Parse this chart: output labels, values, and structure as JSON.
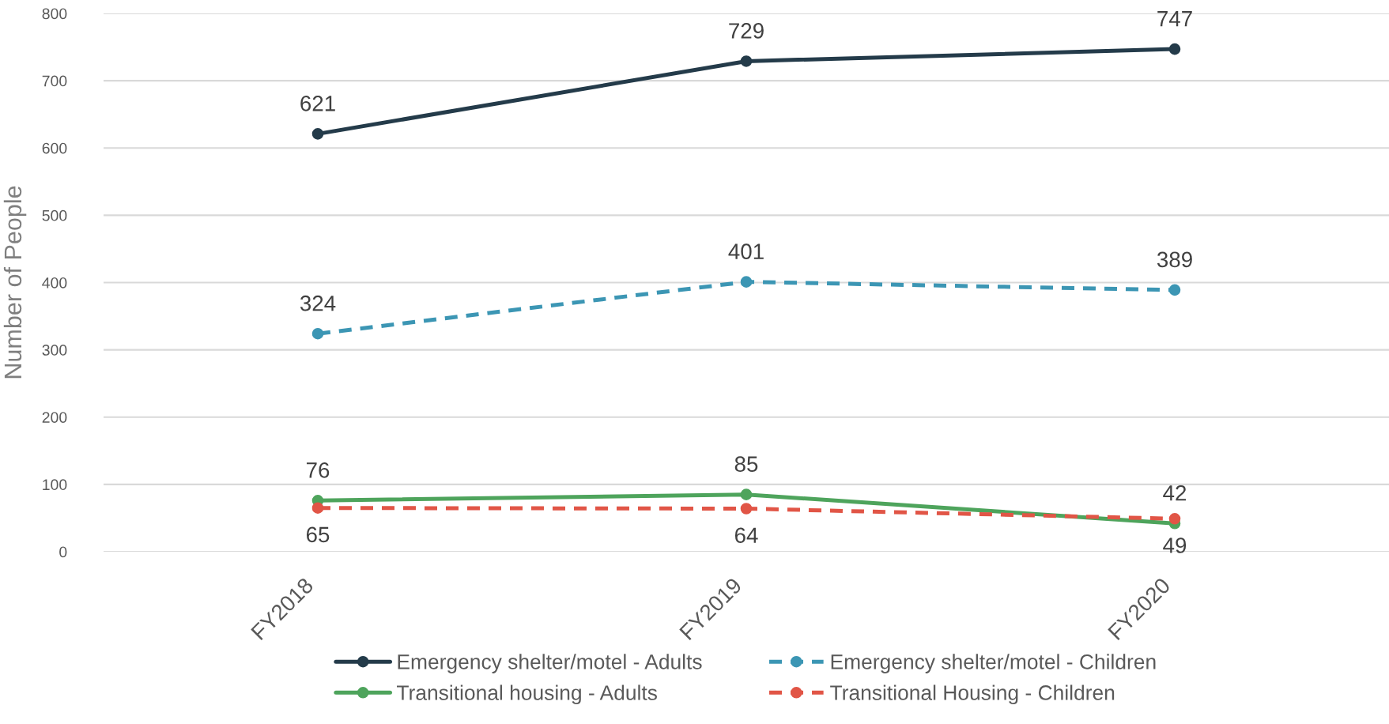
{
  "chart_data": {
    "type": "line",
    "ylabel": "Number of People",
    "categories": [
      "FY2018",
      "FY2019",
      "FY2020"
    ],
    "series": [
      {
        "name": "Emergency shelter/motel - Adults",
        "color": "#243b4a",
        "line_style": "solid",
        "values": [
          621,
          729,
          747
        ]
      },
      {
        "name": "Emergency shelter/motel - Children",
        "color": "#3c96b4",
        "line_style": "dashed",
        "values": [
          324,
          401,
          389
        ]
      },
      {
        "name": "Transitional housing - Adults",
        "color": "#4ea45c",
        "line_style": "solid",
        "values": [
          76,
          85,
          42
        ]
      },
      {
        "name": "Transitional Housing - Children",
        "color": "#e15546",
        "line_style": "dashed",
        "values": [
          65,
          64,
          49
        ]
      }
    ],
    "ylim": [
      0,
      800
    ],
    "yticks": [
      0,
      100,
      200,
      300,
      400,
      500,
      600,
      700,
      800
    ],
    "grid": "y",
    "legend": "bottom",
    "marker": "circle",
    "data_labels": true
  }
}
